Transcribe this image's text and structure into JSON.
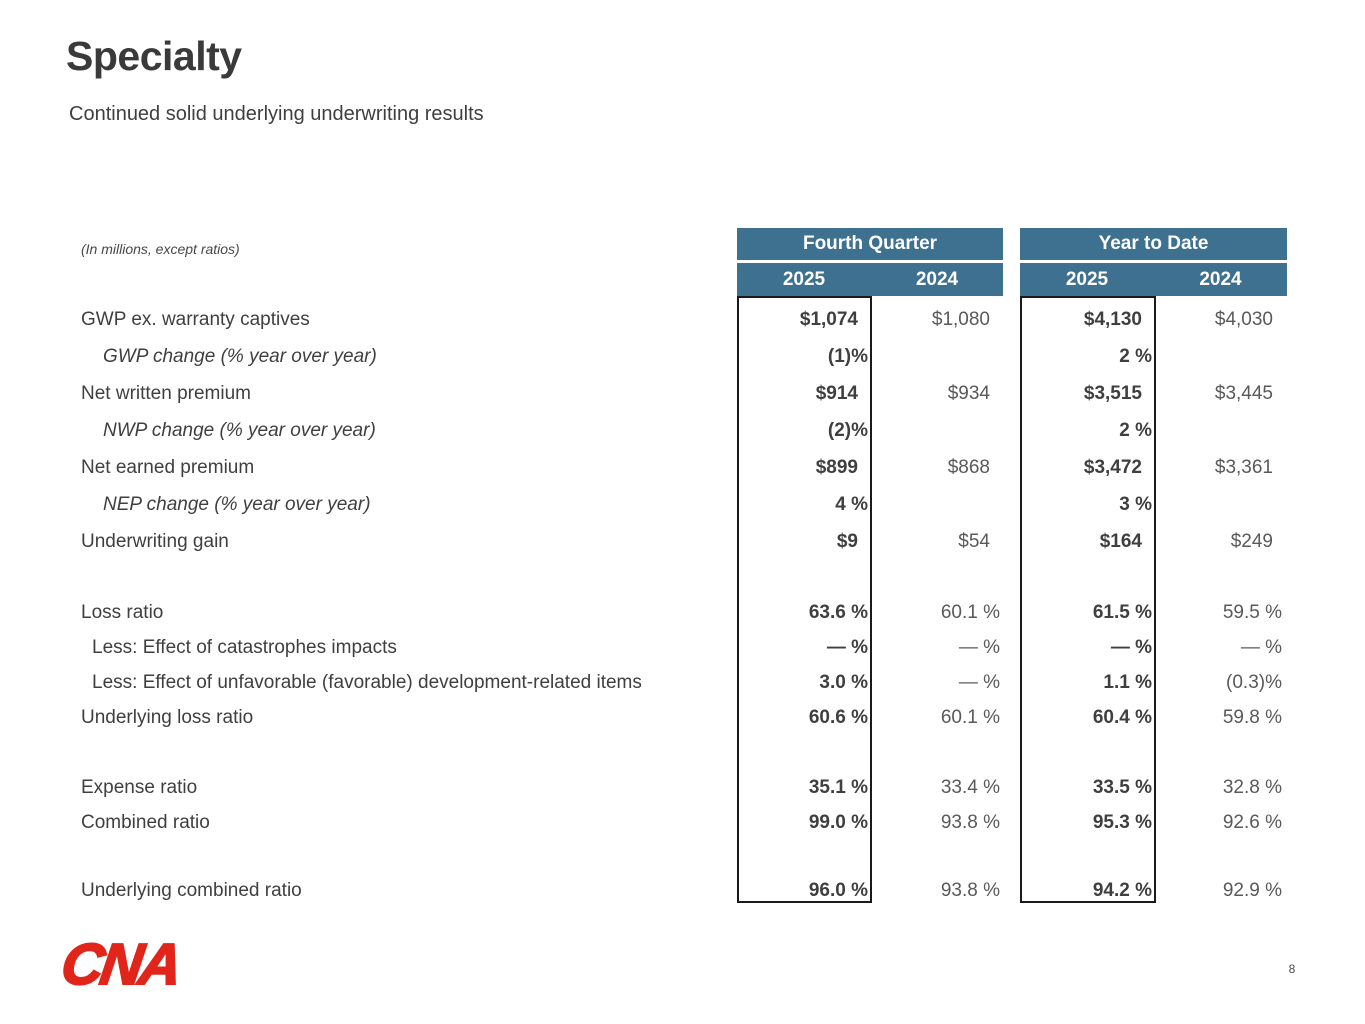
{
  "slide": {
    "title": "Specialty",
    "subtitle": "Continued solid underlying underwriting results",
    "logo_text": "CNA",
    "page_number": "8"
  },
  "colors": {
    "header_blue": "#3e7090",
    "logo_red": "#e1251b",
    "text_dark": "#3f3f3f",
    "text_muted": "#595959",
    "highlight_border": "#1a1a1a"
  },
  "table": {
    "note": "(In millions, except ratios)",
    "groups": [
      {
        "label": "Fourth Quarter",
        "years": [
          "2025",
          "2024"
        ]
      },
      {
        "label": "Year to Date",
        "years": [
          "2025",
          "2024"
        ]
      }
    ],
    "rows": [
      {
        "label": "GWP ex. warranty captives",
        "indent": "main",
        "value_type": "money",
        "fq_2025": "$1,074",
        "fq_2024": "$1,080",
        "ytd_2025": "$4,130",
        "ytd_2024": "$4,030"
      },
      {
        "label": "GWP change (% year over year)",
        "indent": "italic",
        "value_type": "percent",
        "fq_2025": "(1)%",
        "fq_2024": "",
        "ytd_2025": "2 %",
        "ytd_2024": ""
      },
      {
        "label": "Net written premium",
        "indent": "main",
        "value_type": "money",
        "fq_2025": "$914",
        "fq_2024": "$934",
        "ytd_2025": "$3,515",
        "ytd_2024": "$3,445"
      },
      {
        "label": "NWP change (% year over year)",
        "indent": "italic",
        "value_type": "percent",
        "fq_2025": "(2)%",
        "fq_2024": "",
        "ytd_2025": "2 %",
        "ytd_2024": ""
      },
      {
        "label": "Net earned premium",
        "indent": "main",
        "value_type": "money",
        "fq_2025": "$899",
        "fq_2024": "$868",
        "ytd_2025": "$3,472",
        "ytd_2024": "$3,361"
      },
      {
        "label": "NEP change (% year over year)",
        "indent": "italic",
        "value_type": "percent",
        "fq_2025": "4 %",
        "fq_2024": "",
        "ytd_2025": "3 %",
        "ytd_2024": ""
      },
      {
        "label": "Underwriting gain",
        "indent": "main",
        "value_type": "money",
        "fq_2025": "$9",
        "fq_2024": "$54",
        "ytd_2025": "$164",
        "ytd_2024": "$249"
      },
      {
        "type": "spacer"
      },
      {
        "label": "Loss ratio",
        "indent": "main",
        "value_type": "percent",
        "fq_2025": "63.6 %",
        "fq_2024": "60.1 %",
        "ytd_2025": "61.5 %",
        "ytd_2024": "59.5 %"
      },
      {
        "label": "Less: Effect of catastrophes impacts",
        "indent": "less",
        "value_type": "percent",
        "fq_2025": "— %",
        "fq_2024": "— %",
        "ytd_2025": "— %",
        "ytd_2024": "— %"
      },
      {
        "label": "Less: Effect of unfavorable (favorable) development-related items",
        "indent": "less",
        "value_type": "percent",
        "fq_2025": "3.0 %",
        "fq_2024": "— %",
        "ytd_2025": "1.1 %",
        "ytd_2024": "(0.3)%"
      },
      {
        "label": "Underlying loss ratio",
        "indent": "main",
        "value_type": "percent",
        "fq_2025": "60.6 %",
        "fq_2024": "60.1 %",
        "ytd_2025": "60.4 %",
        "ytd_2024": "59.8 %"
      },
      {
        "type": "spacer"
      },
      {
        "label": "Expense ratio",
        "indent": "main",
        "value_type": "percent",
        "fq_2025": "35.1 %",
        "fq_2024": "33.4 %",
        "ytd_2025": "33.5 %",
        "ytd_2024": "32.8 %"
      },
      {
        "label": "Combined ratio",
        "indent": "main",
        "value_type": "percent",
        "fq_2025": "99.0 %",
        "fq_2024": "93.8 %",
        "ytd_2025": "95.3 %",
        "ytd_2024": "92.6 %"
      },
      {
        "type": "spacer"
      },
      {
        "label": "Underlying combined ratio",
        "indent": "main",
        "value_type": "percent",
        "fq_2025": "96.0 %",
        "fq_2024": "93.8 %",
        "ytd_2025": "94.2 %",
        "ytd_2024": "92.9 %"
      }
    ]
  }
}
